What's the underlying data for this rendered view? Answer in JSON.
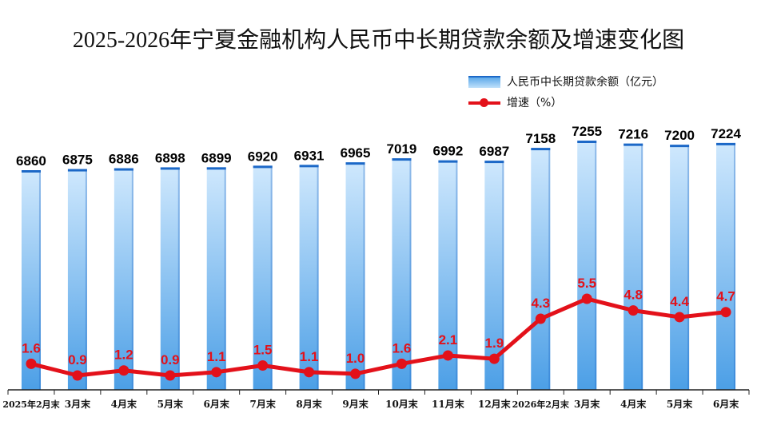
{
  "title": "2025-2026年宁夏金融机构人民币中长期贷款余额及增速变化图",
  "legend": {
    "bar_label": "人民币中长期贷款余额（亿元）",
    "line_label": "增速（%）"
  },
  "colors": {
    "bar_top": "#1c68c7",
    "bar_gradient_light": "#cfe8fd",
    "bar_gradient_dark": "#4c9fe6",
    "line": "#e3111a",
    "bar_value_text": "#000000",
    "line_value_text": "#e3111a"
  },
  "chart_data": {
    "type": "bar",
    "categories": [
      "2025年2月末",
      "3月末",
      "4月末",
      "5月末",
      "6月末",
      "7月末",
      "8月末",
      "9月末",
      "10月末",
      "11月末",
      "12月末",
      "2026年2月末",
      "3月末",
      "4月末",
      "5月末",
      "6月末"
    ],
    "series": [
      {
        "name": "人民币中长期贷款余额（亿元）",
        "type": "bar",
        "values": [
          6860,
          6875,
          6886,
          6898,
          6899,
          6920,
          6931,
          6965,
          7019,
          6992,
          6987,
          7158,
          7255,
          7216,
          7200,
          7224
        ]
      },
      {
        "name": "增速（%）",
        "type": "line",
        "values": [
          1.6,
          0.9,
          1.2,
          0.9,
          1.1,
          1.5,
          1.1,
          1.0,
          1.6,
          2.1,
          1.9,
          4.3,
          5.5,
          4.8,
          4.4,
          4.7
        ]
      }
    ],
    "grid": false,
    "legend_position": "top-right"
  }
}
